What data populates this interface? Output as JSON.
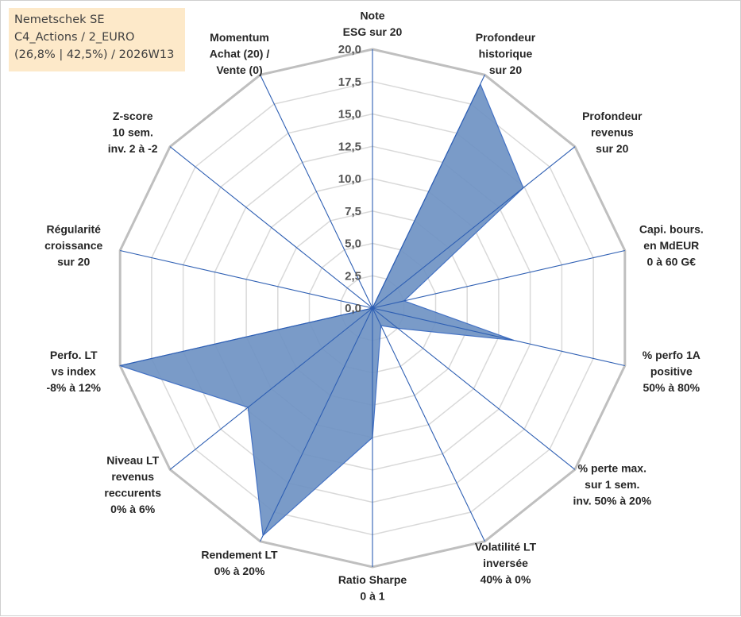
{
  "title": {
    "lines": [
      "Nemetschek SE",
      "C4_Actions / 2_EURO",
      "(26,8% | 42,5%) / 2026W13"
    ]
  },
  "chart_data": {
    "type": "radar",
    "rmin": 0,
    "rmax": 20,
    "ticks": [
      "0,0",
      "2,5",
      "5,0",
      "7,5",
      "10,0",
      "12,5",
      "15,0",
      "17,5",
      "20,0"
    ],
    "tick_values": [
      0,
      2.5,
      5,
      7.5,
      10,
      12.5,
      15,
      17.5,
      20
    ],
    "grid_values": [
      2.5,
      5,
      7.5,
      10,
      12.5,
      15,
      17.5
    ],
    "outer_value": 20,
    "colors": {
      "fill": "#6f93c3",
      "stroke": "#4472c4",
      "spoke": "#2e5fb3",
      "grid_minor": "#d9d9d9",
      "grid_major": "#bfbfbf"
    },
    "series": [
      {
        "name": "Nemetschek SE",
        "axes": [
          {
            "label": [
              "Note",
              "ESG sur 20"
            ],
            "value": 0
          },
          {
            "label": [
              "Profondeur",
              "historique",
              "sur 20"
            ],
            "value": 19.2
          },
          {
            "label": [
              "Profondeur",
              "revenus",
              "sur 20"
            ],
            "value": 14.9
          },
          {
            "label": [
              "Capi. bours.",
              "en MdEUR",
              "0 à 60 G€"
            ],
            "value": 2.5
          },
          {
            "label": [
              "% perfo 1A",
              "positive",
              "50% à 80%"
            ],
            "value": 11.2
          },
          {
            "label": [
              "% perte max.",
              "sur 1 sem.",
              "inv. 50% à 20%"
            ],
            "value": 2.5
          },
          {
            "label": [
              "Volatilité LT",
              "inversée",
              "40% à 0%"
            ],
            "value": 1.5
          },
          {
            "label": [
              "Ratio Sharpe",
              "0 à 1"
            ],
            "value": 10.0
          },
          {
            "label": [
              "Rendement LT",
              "0% à 20%"
            ],
            "value": 19.5
          },
          {
            "label": [
              "Niveau LT",
              "revenus",
              "reccurents",
              "0% à 6%"
            ],
            "value": 12.3
          },
          {
            "label": [
              "Perfo. LT",
              "vs index",
              "-8% à 12%"
            ],
            "value": 20.0
          },
          {
            "label": [
              "Régularité",
              "croissance",
              "sur 20"
            ],
            "value": 0
          },
          {
            "label": [
              "Z-score",
              "10 sem.",
              "inv. 2 à -2"
            ],
            "value": 0
          },
          {
            "label": [
              "Momentum",
              "Achat (20) /",
              "Vente (0)"
            ],
            "value": 0
          }
        ]
      }
    ]
  }
}
